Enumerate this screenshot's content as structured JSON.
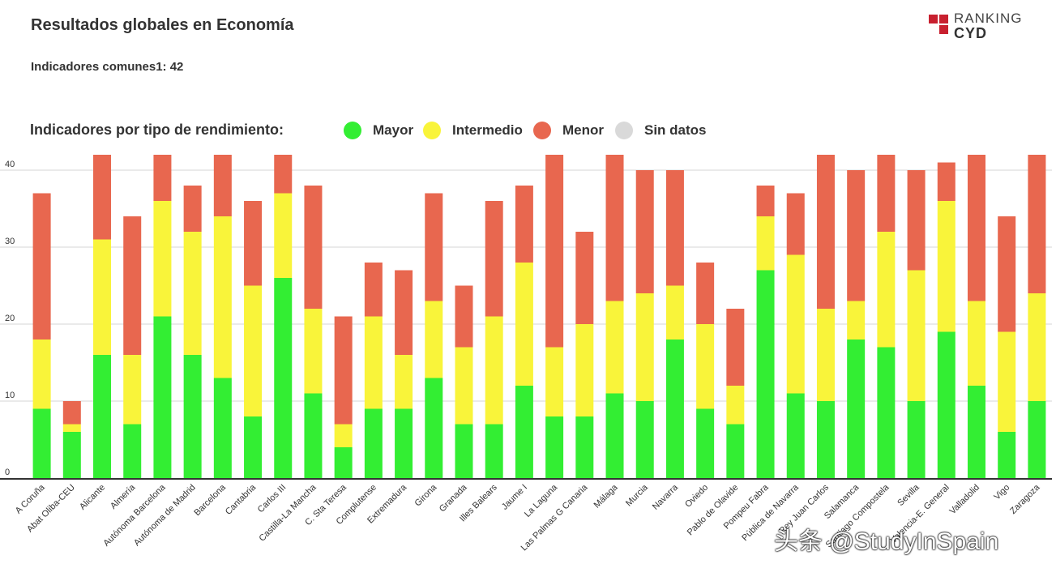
{
  "title": "Resultados globales en Economía",
  "subtitle": "Indicadores comunes1: 42",
  "logo": {
    "line1": "RANKING",
    "line2": "CYD",
    "color": "#c8202f"
  },
  "legend": {
    "title": "Indicadores por tipo de rendimiento:",
    "items": [
      {
        "label": "Mayor",
        "color": "#33ee33"
      },
      {
        "label": "Intermedio",
        "color": "#f9f43a"
      },
      {
        "label": "Menor",
        "color": "#e8674f"
      },
      {
        "label": "Sin datos",
        "color": "#d9d9d9"
      }
    ]
  },
  "watermark": "头条 @StudyInSpain",
  "chart_data": {
    "type": "bar",
    "stacked": true,
    "ylim": [
      0,
      42
    ],
    "yticks": [
      0,
      10,
      20,
      30,
      40
    ],
    "grid": true,
    "categories": [
      "A Coruña",
      "Abat Oliba-CEU",
      "Alicante",
      "Almería",
      "Autónoma Barcelona",
      "Autónoma de Madrid",
      "Barcelona",
      "Cantabria",
      "Carlos III",
      "Castilla-La Mancha",
      "C. Sta Teresa",
      "Complutense",
      "Extremadura",
      "Girona",
      "Granada",
      "Illes Balears",
      "Jaume I",
      "La Laguna",
      "Las Palmas G Canaria",
      "Málaga",
      "Murcia",
      "Navarra",
      "Oviedo",
      "Pablo de Olavide",
      "Pompeu Fabra",
      "Pública de Navarra",
      "Rey Juan Carlos",
      "Salamanca",
      "Santiago Compostela",
      "Sevilla",
      "Valencia-E. General",
      "Valladolid",
      "Vigo",
      "Zaragoza"
    ],
    "series": [
      {
        "name": "Mayor",
        "color": "#33ee33",
        "values": [
          9,
          6,
          16,
          7,
          21,
          16,
          13,
          8,
          26,
          11,
          4,
          9,
          9,
          13,
          7,
          7,
          12,
          8,
          8,
          11,
          10,
          18,
          9,
          7,
          27,
          11,
          10,
          18,
          17,
          10,
          19,
          12,
          6,
          10
        ]
      },
      {
        "name": "Intermedio",
        "color": "#f9f43a",
        "values": [
          9,
          1,
          15,
          9,
          15,
          16,
          21,
          17,
          11,
          11,
          3,
          12,
          7,
          10,
          10,
          14,
          16,
          9,
          12,
          12,
          14,
          7,
          11,
          5,
          7,
          18,
          12,
          5,
          15,
          17,
          17,
          11,
          13,
          14
        ]
      },
      {
        "name": "Menor",
        "color": "#e8674f",
        "values": [
          19,
          3,
          11,
          18,
          6,
          6,
          8,
          11,
          5,
          16,
          14,
          7,
          11,
          14,
          8,
          15,
          10,
          25,
          12,
          19,
          16,
          15,
          8,
          10,
          4,
          8,
          20,
          17,
          10,
          13,
          5,
          19,
          15,
          18
        ]
      }
    ]
  }
}
